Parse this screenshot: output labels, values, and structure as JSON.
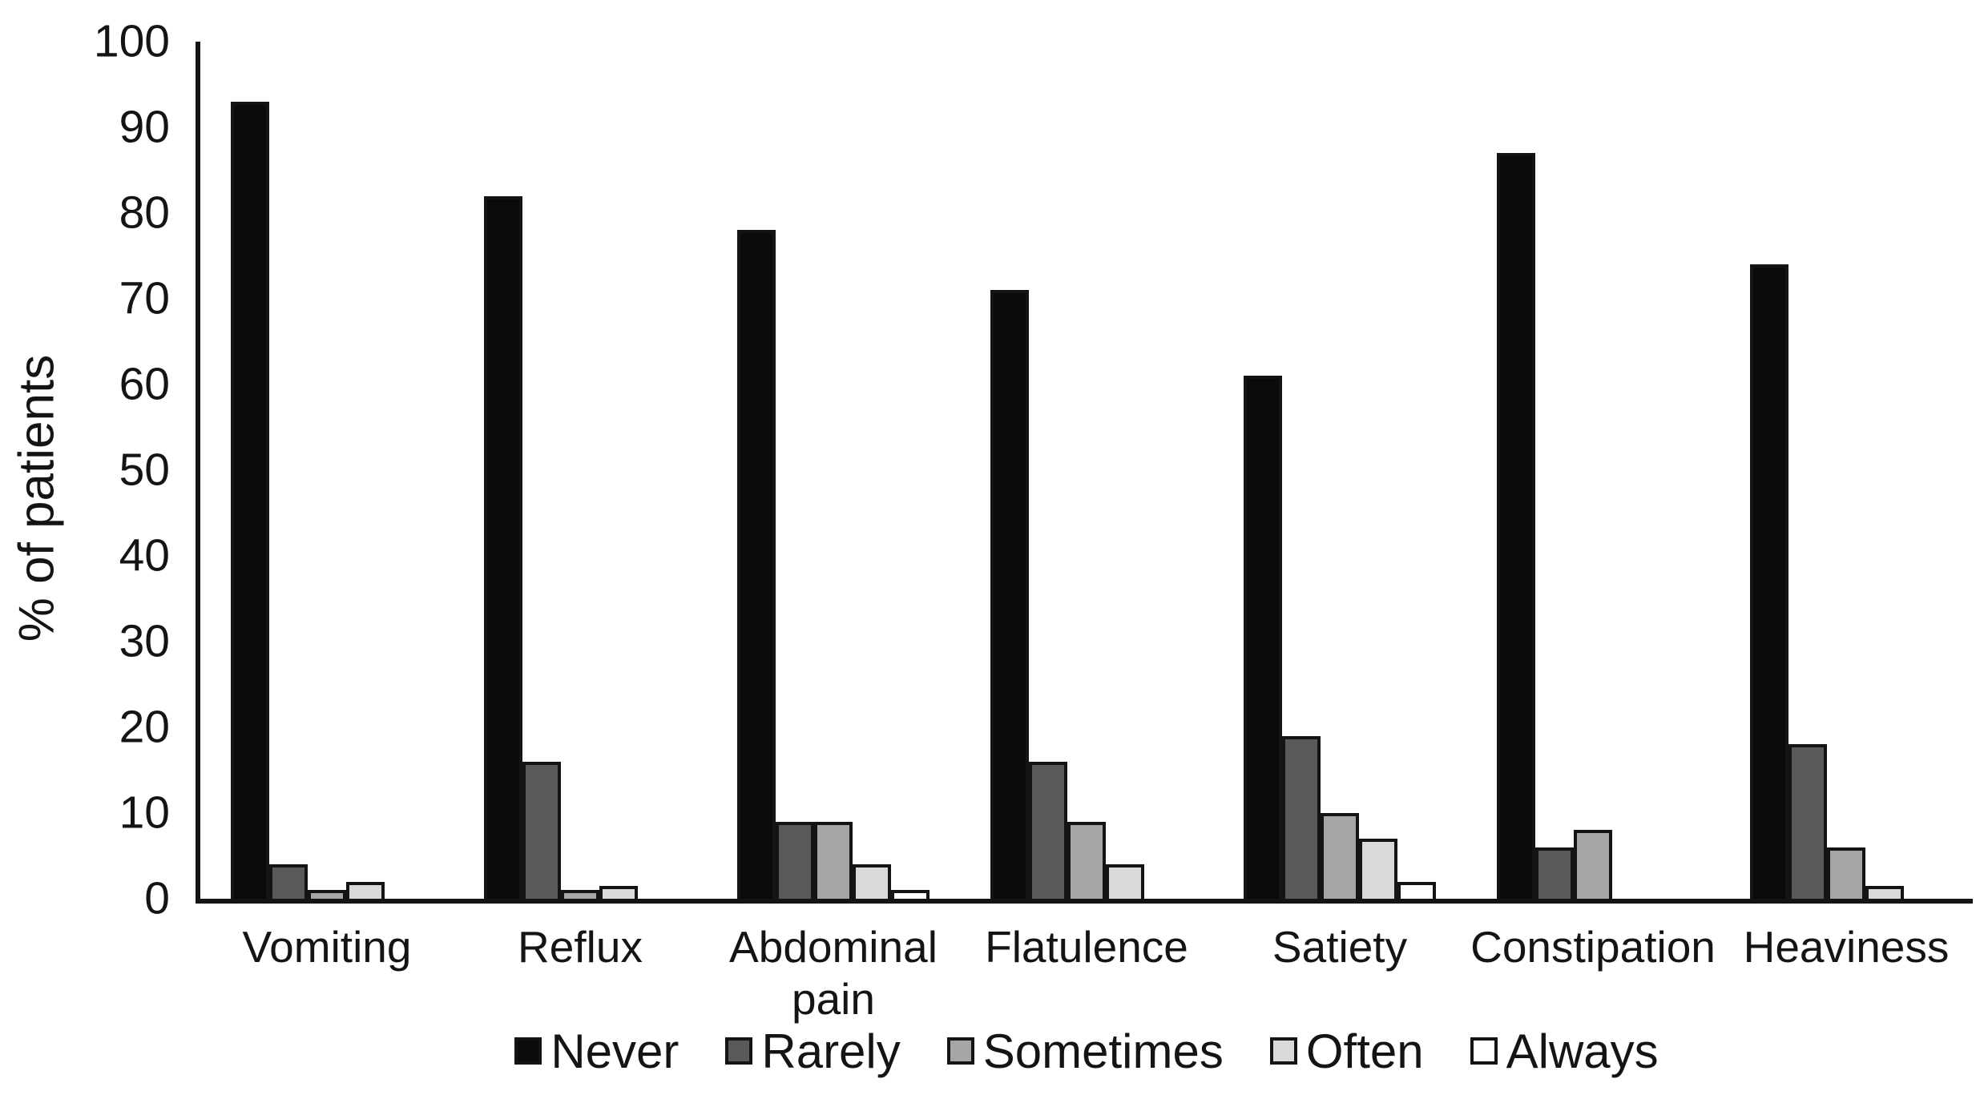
{
  "chart_data": {
    "type": "bar",
    "title": "",
    "xlabel": "",
    "ylabel": "% of patients",
    "ylim": [
      0,
      100
    ],
    "yticks": [
      0,
      10,
      20,
      30,
      40,
      50,
      60,
      70,
      80,
      90,
      100
    ],
    "grid": false,
    "legend_position": "bottom",
    "categories": [
      "Vomiting",
      "Reflux",
      "Abdominal pain",
      "Flatulence",
      "Satiety",
      "Constipation",
      "Heaviness"
    ],
    "series": [
      {
        "name": "Never",
        "color": "#0b0b0b",
        "values": [
          93,
          82,
          78,
          71,
          61,
          87,
          74
        ]
      },
      {
        "name": "Rarely",
        "color": "#595959",
        "values": [
          4,
          16,
          9,
          16,
          19,
          6,
          18
        ]
      },
      {
        "name": "Sometimes",
        "color": "#a6a6a6",
        "values": [
          1,
          1,
          9,
          9,
          10,
          8,
          6
        ]
      },
      {
        "name": "Often",
        "color": "#d9d9d9",
        "values": [
          2,
          1.5,
          4,
          4,
          7,
          0,
          1.5
        ]
      },
      {
        "name": "Always",
        "color": "#ffffff",
        "values": [
          0,
          0,
          1,
          0,
          2,
          0,
          0
        ]
      }
    ],
    "bar_border_color": "#141414",
    "axis_color": "#141414"
  }
}
